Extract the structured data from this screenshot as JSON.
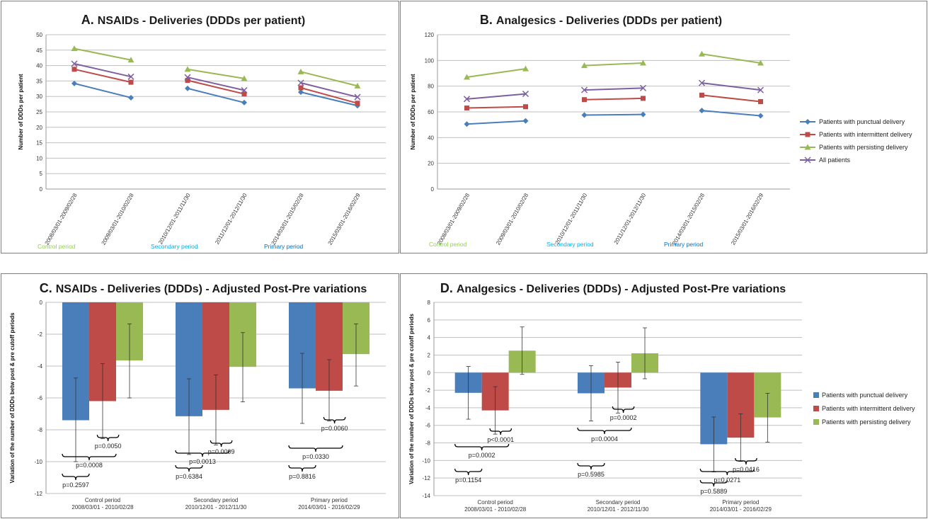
{
  "colors": {
    "punctual": "#4a7ebb",
    "intermittent": "#be4b48",
    "persisting": "#98b954",
    "all": "#7d60a0",
    "control": "#92d050",
    "secondary": "#00b0f0",
    "primary": "#0070c0",
    "grid": "#bfbfbf"
  },
  "chart_data": [
    {
      "id": "A",
      "type": "line",
      "title_letter": "A.",
      "title": "NSAIDs - Deliveries (DDDs per patient)",
      "ylabel": "Number of DDDs per patient",
      "ylim": [
        0,
        50
      ],
      "yticks": [
        0,
        5,
        10,
        15,
        20,
        25,
        30,
        35,
        40,
        45,
        50
      ],
      "categories": [
        "2008/03/01-2009/02/28",
        "2009/03/01-2010/02/28",
        "2010/12/01-2011/11/30",
        "2011/12/01-2012/11/30",
        "2014/03/01-2015/02/28",
        "2015/03/01-2016/02/29"
      ],
      "periods": [
        "Control period",
        "Secondary period",
        "Primary period"
      ],
      "series": [
        {
          "key": "punctual",
          "marker": "diamond",
          "values": [
            34.2,
            29.6,
            32.6,
            28.0,
            31.4,
            27.0
          ]
        },
        {
          "key": "intermittent",
          "marker": "square",
          "values": [
            38.8,
            34.6,
            35.2,
            30.8,
            32.8,
            27.8
          ]
        },
        {
          "key": "persisting",
          "marker": "triangle",
          "values": [
            45.5,
            41.8,
            38.8,
            35.8,
            38.0,
            33.4
          ]
        },
        {
          "key": "all",
          "marker": "x",
          "values": [
            40.6,
            36.4,
            36.2,
            32.0,
            34.4,
            29.8
          ]
        }
      ]
    },
    {
      "id": "B",
      "type": "line",
      "title_letter": "B.",
      "title": "Analgesics - Deliveries (DDDs per patient)",
      "ylabel": "Number of DDDs per patient",
      "ylim": [
        0,
        120
      ],
      "yticks": [
        0,
        20,
        40,
        60,
        80,
        100,
        120
      ],
      "categories": [
        "2008/03/01-2009/02/28",
        "2009/03/01-2010/02/28",
        "2010/12/01-2011/11/30",
        "2011/12/01-2012/11/30",
        "2014/03/01-2015/02/28",
        "2015/03/01-2016/02/29"
      ],
      "periods": [
        "Control period",
        "Secondary period",
        "Primary period"
      ],
      "legend_position": "right",
      "legend": [
        {
          "key": "punctual",
          "marker": "diamond",
          "label": "Patients with punctual delivery"
        },
        {
          "key": "intermittent",
          "marker": "square",
          "label": "Patients with intermittent delivery"
        },
        {
          "key": "persisting",
          "marker": "triangle",
          "label": "Patients with persisting delivery"
        },
        {
          "key": "all",
          "marker": "x",
          "label": "All patients"
        }
      ],
      "series": [
        {
          "key": "punctual",
          "marker": "diamond",
          "values": [
            50.5,
            53.0,
            57.5,
            58.0,
            61.0,
            57.0
          ]
        },
        {
          "key": "intermittent",
          "marker": "square",
          "values": [
            63.0,
            64.0,
            69.5,
            70.5,
            73.0,
            68.0
          ]
        },
        {
          "key": "persisting",
          "marker": "triangle",
          "values": [
            87.0,
            93.5,
            96.0,
            98.0,
            105.0,
            98.0
          ]
        },
        {
          "key": "all",
          "marker": "x",
          "values": [
            70.0,
            74.0,
            77.0,
            78.5,
            82.5,
            77.0
          ]
        }
      ]
    },
    {
      "id": "C",
      "type": "bar",
      "title_letter": "C.",
      "title": "NSAIDs - Deliveries (DDDs) - Adjusted Post-Pre variations",
      "ylabel": "Variation of the number of DDDs betw post & pre cutoff periods",
      "ylim": [
        -12,
        0
      ],
      "yticks": [
        -12,
        -10,
        -8,
        -6,
        -4,
        -2,
        0
      ],
      "categories": [
        "Control period",
        "Secondary period",
        "Primary period"
      ],
      "category_dates": [
        "2008/03/01 - 2010/02/28",
        "2010/12/01 - 2012/11/30",
        "2014/03/01 - 2016/02/29"
      ],
      "series": [
        {
          "key": "punctual",
          "values": [
            -7.4,
            -7.15,
            -5.4
          ],
          "err_low": [
            -10.0,
            -9.55,
            -7.6
          ],
          "err_high": [
            -4.75,
            -4.8,
            -3.2
          ]
        },
        {
          "key": "intermittent",
          "values": [
            -6.2,
            -6.75,
            -5.55
          ],
          "err_low": [
            -8.55,
            -8.95,
            -7.45
          ],
          "err_high": [
            -3.85,
            -4.55,
            -3.6
          ]
        },
        {
          "key": "persisting",
          "values": [
            -3.65,
            -4.05,
            -3.25
          ],
          "err_low": [
            -6.0,
            -6.25,
            -5.25
          ],
          "err_high": [
            -1.35,
            -1.9,
            -1.35
          ]
        }
      ],
      "pvalues": [
        [
          "p=0.2597",
          "p=0.0008",
          "p=0.0050"
        ],
        [
          "p=0.6384",
          "p=0.0013",
          "p=0.0009"
        ],
        [
          "p=0.8816",
          "p=0.0330",
          "p=0.0060"
        ]
      ]
    },
    {
      "id": "D",
      "type": "bar",
      "title_letter": "D.",
      "title": "Analgesics - Deliveries (DDDs) - Adjusted Post-Pre variations",
      "ylabel": "Variation of the number of DDDs betw post & pre cutoff periods",
      "ylim": [
        -14,
        8
      ],
      "yticks": [
        -14,
        -12,
        -10,
        -8,
        -6,
        -4,
        -2,
        0,
        2,
        4,
        6,
        8
      ],
      "categories": [
        "Control period",
        "Secondary period",
        "Primary period"
      ],
      "category_dates": [
        "2008/03/01 - 2010/02/28",
        "2010/12/01 - 2012/11/30",
        "2014/03/01 - 2016/02/29"
      ],
      "legend_position": "right",
      "legend": [
        {
          "key": "punctual",
          "label": "Patients with punctual delivery"
        },
        {
          "key": "intermittent",
          "label": "Patients with intermittent delivery"
        },
        {
          "key": "persisting",
          "label": "Patients with persisting delivery"
        }
      ],
      "series": [
        {
          "key": "punctual",
          "values": [
            -2.3,
            -2.35,
            -8.15
          ],
          "err_low": [
            -5.3,
            -5.5,
            -11.3
          ],
          "err_high": [
            0.7,
            0.8,
            -5.05
          ]
        },
        {
          "key": "intermittent",
          "values": [
            -4.3,
            -1.7,
            -7.4
          ],
          "err_low": [
            -7.0,
            -4.6,
            -10.1
          ],
          "err_high": [
            -1.6,
            1.2,
            -4.7
          ]
        },
        {
          "key": "persisting",
          "values": [
            2.5,
            2.2,
            -5.1
          ],
          "err_low": [
            -0.2,
            -0.7,
            -7.9
          ],
          "err_high": [
            5.2,
            5.1,
            -2.35
          ]
        }
      ],
      "pvalues": [
        [
          "p=0.1154",
          "p=0.0002",
          "p<0.0001"
        ],
        [
          "p=0.5985",
          "p=0.0004",
          "p=0.0002"
        ],
        [
          "p=0.5889",
          "p=0.0271",
          "p=0.0416"
        ]
      ]
    }
  ]
}
